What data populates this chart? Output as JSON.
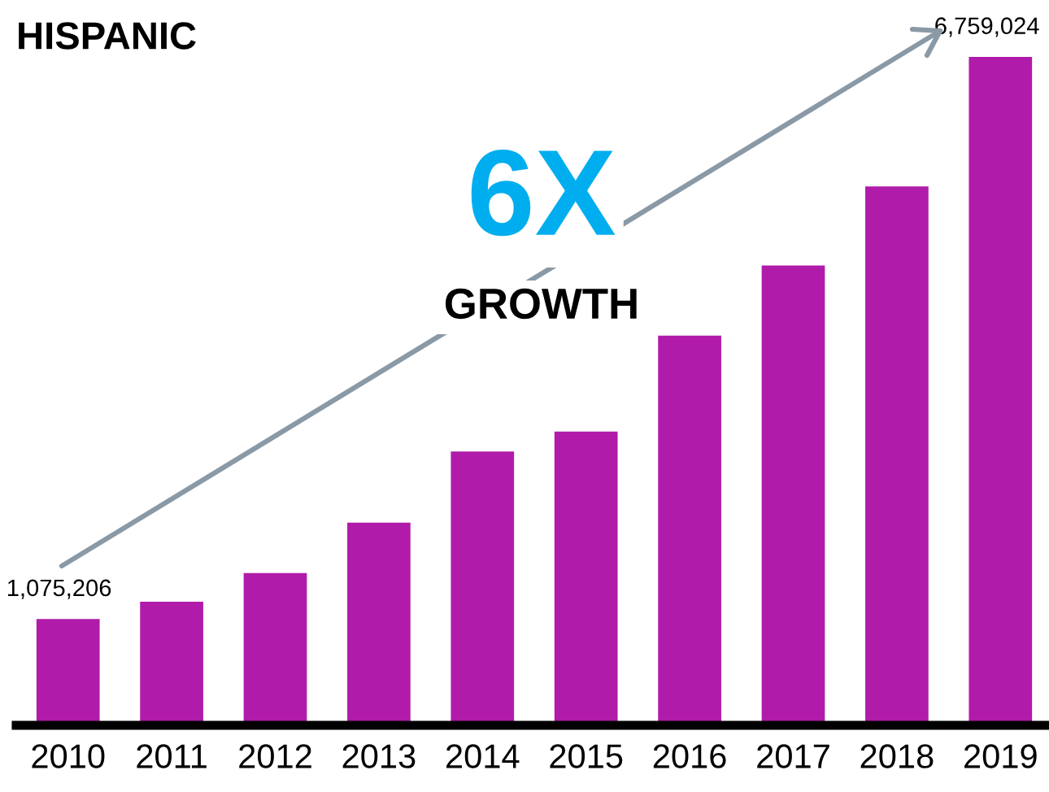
{
  "chart_data": {
    "type": "bar",
    "title": "HISPANIC",
    "categories": [
      "2010",
      "2011",
      "2012",
      "2013",
      "2014",
      "2015",
      "2016",
      "2017",
      "2018",
      "2019"
    ],
    "values": [
      1075206,
      1250000,
      1540000,
      2050000,
      2770000,
      2970000,
      3940000,
      4650000,
      5450000,
      6759024
    ],
    "value_labels": [
      "1,075,206",
      null,
      null,
      null,
      null,
      null,
      null,
      null,
      null,
      "6,759,024"
    ],
    "color": "#b01ca9",
    "annotations": [
      "6X",
      "GROWTH"
    ],
    "grid": false,
    "legend": false
  }
}
